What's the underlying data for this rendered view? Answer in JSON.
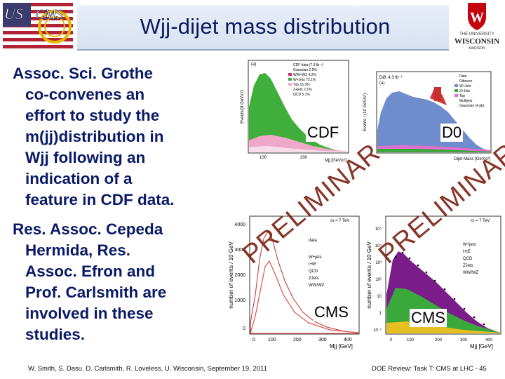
{
  "header": {
    "title": "Wjj-dijet mass distribution",
    "left_logo_text": "US CMS",
    "right_logo_line1": "THE UNIVERSITY",
    "right_logo_line2": "WISCONSIN",
    "right_logo_line3": "MADISON"
  },
  "bullets": {
    "first": [
      "Assoc. Sci. Grothe",
      "co-convenes an",
      "effort to study the",
      "m(jj)distribution in",
      "Wjj following an",
      "indication of a",
      "feature in CDF data."
    ],
    "second": [
      "Res. Assoc. Cepeda",
      "Hermida, Res.",
      "Assoc. Efron and",
      "Prof. Carlsmith are",
      "involved in these",
      "studies."
    ]
  },
  "panels": {
    "cdf_label": "CDF",
    "d0_label": "D0",
    "cms_label_1": "CMS",
    "cms_label_2": "CMS",
    "prelim_1": "PRELIMINAR",
    "prelim_2": "PRELIMINAR",
    "cdf_xlabel": "M<sub>jj</sub> [GeV/c²]",
    "cdf_ylabel": "Events/(8 GeV/c²)",
    "d0_xlabel": "Dijet Mass [GeV/c²]",
    "d0_ylabel": "Events / (10 GeV/c²)",
    "cms_ylabel": "number of events / 10 GeV",
    "cms_xlabel": "Mjj [GeV]",
    "cms_energy": "√s = 7 TeV"
  },
  "footer": {
    "left": "W. Smith, S. Dasu. D. Carlsmith, R. Loveless, U. Wisconsin, September 19, 2011",
    "right": "DOE Review: Task T: CMS at LHC - 45"
  },
  "colors": {
    "title_text": "#0a1a5c",
    "bullet_text": "#0a1a66",
    "cdf_green": "#3fae3a",
    "cdf_pink": "#f0a8c8",
    "d0_blue": "#6f8ccc",
    "cms_purple": "#7a1d8a",
    "cms_green": "#3aa83a"
  }
}
